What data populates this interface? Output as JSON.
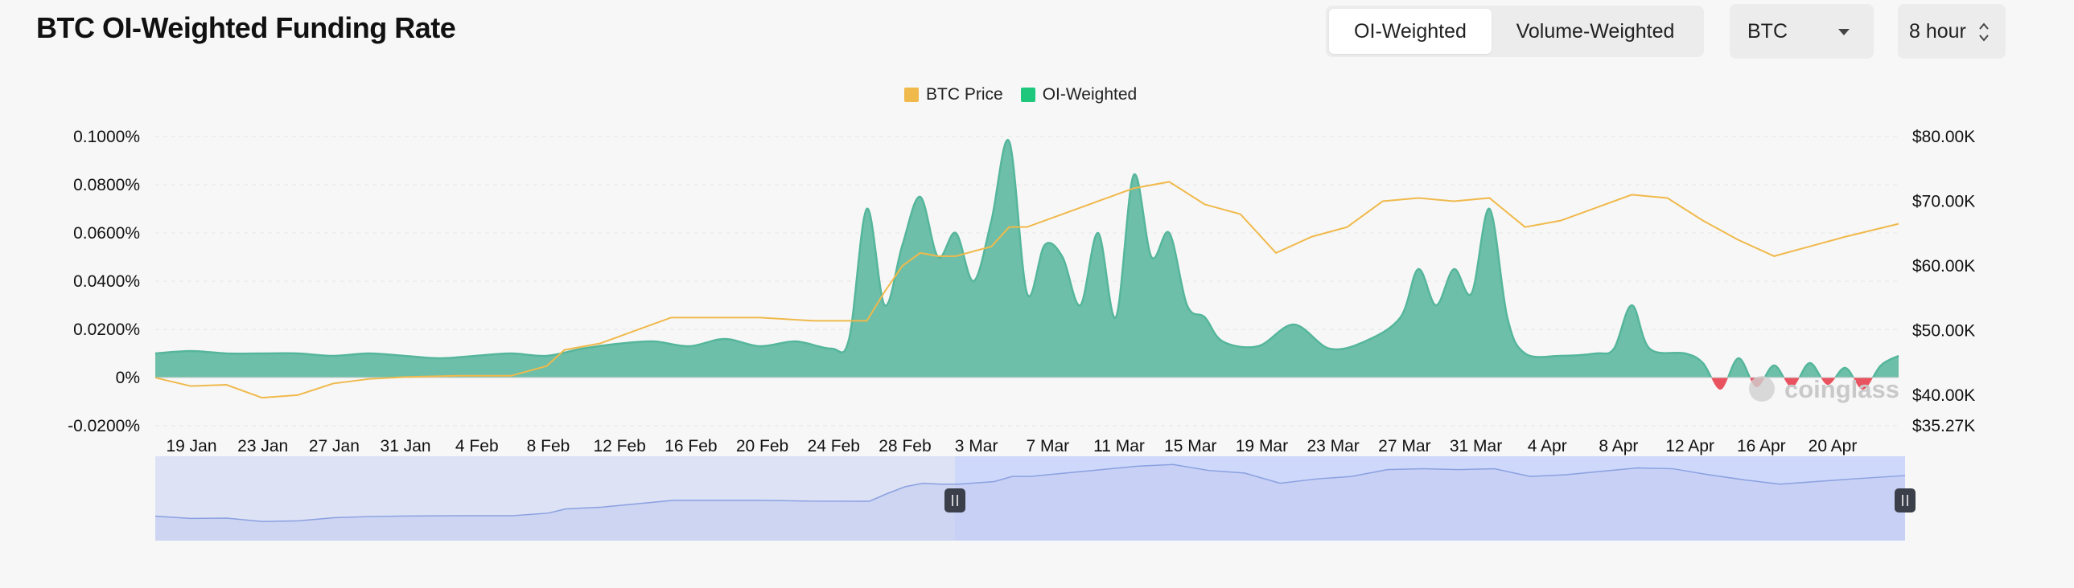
{
  "header": {
    "title": "BTC OI-Weighted Funding Rate",
    "tabs": [
      {
        "label": "OI-Weighted",
        "active": true
      },
      {
        "label": "Volume-Weighted",
        "active": false
      }
    ],
    "coin_select": {
      "value": "BTC",
      "icon": "chevron-down-icon"
    },
    "interval_select": {
      "value": "8 hour",
      "icon": "up-down-chevron-icon"
    }
  },
  "watermark": "coinglass",
  "colors": {
    "price_line": "#f0b94b",
    "funding_positive": "#55b69b",
    "funding_positive_fill": "#6dbfa9",
    "funding_negative": "#e8535f",
    "navigator_fill": "#dde2f5",
    "navigator_selected": "#ced8fa",
    "navigator_line": "#8aa0e0"
  },
  "chart_data": {
    "type": "area",
    "legend": [
      "BTC Price",
      "OI-Weighted"
    ],
    "legend_position": "top-center",
    "x_tick_labels": [
      "19 Jan",
      "23 Jan",
      "27 Jan",
      "31 Jan",
      "4 Feb",
      "8 Feb",
      "12 Feb",
      "16 Feb",
      "20 Feb",
      "24 Feb",
      "28 Feb",
      "3 Mar",
      "7 Mar",
      "11 Mar",
      "15 Mar",
      "19 Mar",
      "23 Mar",
      "27 Mar",
      "31 Mar",
      "4 Apr",
      "8 Apr",
      "12 Apr",
      "16 Apr",
      "20 Apr"
    ],
    "y_left": {
      "tick_labels": [
        "0.1000%",
        "0.0800%",
        "0.0600%",
        "0.0400%",
        "0.0200%",
        "0%",
        "-0.0200%"
      ],
      "range_percent": [
        -0.02,
        0.1
      ]
    },
    "y_right": {
      "tick_labels": [
        "$80.00K",
        "$70.00K",
        "$60.00K",
        "$50.00K",
        "$40.00K",
        "$35.27K"
      ],
      "range_usd": [
        35270,
        80000
      ]
    },
    "grid": "horizontal",
    "date_range": [
      "2024-01-17",
      "2024-04-24"
    ],
    "series": [
      {
        "name": "OI-Weighted",
        "unit": "%",
        "points": [
          [
            "2024-01-17",
            0.01
          ],
          [
            "2024-01-19",
            0.011
          ],
          [
            "2024-01-21",
            0.01
          ],
          [
            "2024-01-23",
            0.01
          ],
          [
            "2024-01-25",
            0.01
          ],
          [
            "2024-01-27",
            0.009
          ],
          [
            "2024-01-29",
            0.01
          ],
          [
            "2024-01-31",
            0.009
          ],
          [
            "2024-02-02",
            0.008
          ],
          [
            "2024-02-04",
            0.009
          ],
          [
            "2024-02-06",
            0.01
          ],
          [
            "2024-02-08",
            0.009
          ],
          [
            "2024-02-10",
            0.012
          ],
          [
            "2024-02-12",
            0.014
          ],
          [
            "2024-02-14",
            0.015
          ],
          [
            "2024-02-16",
            0.013
          ],
          [
            "2024-02-18",
            0.016
          ],
          [
            "2024-02-20",
            0.013
          ],
          [
            "2024-02-22",
            0.015
          ],
          [
            "2024-02-24",
            0.012
          ],
          [
            "2024-02-25",
            0.016
          ],
          [
            "2024-02-26",
            0.07
          ],
          [
            "2024-02-27",
            0.03
          ],
          [
            "2024-02-28",
            0.055
          ],
          [
            "2024-02-29",
            0.075
          ],
          [
            "2024-03-01",
            0.05
          ],
          [
            "2024-03-02",
            0.06
          ],
          [
            "2024-03-03",
            0.04
          ],
          [
            "2024-03-04",
            0.065
          ],
          [
            "2024-03-05",
            0.098
          ],
          [
            "2024-03-06",
            0.035
          ],
          [
            "2024-03-07",
            0.055
          ],
          [
            "2024-03-08",
            0.05
          ],
          [
            "2024-03-09",
            0.03
          ],
          [
            "2024-03-10",
            0.06
          ],
          [
            "2024-03-11",
            0.025
          ],
          [
            "2024-03-12",
            0.084
          ],
          [
            "2024-03-13",
            0.05
          ],
          [
            "2024-03-14",
            0.06
          ],
          [
            "2024-03-15",
            0.03
          ],
          [
            "2024-03-16",
            0.025
          ],
          [
            "2024-03-17",
            0.015
          ],
          [
            "2024-03-19",
            0.013
          ],
          [
            "2024-03-21",
            0.022
          ],
          [
            "2024-03-23",
            0.012
          ],
          [
            "2024-03-25",
            0.015
          ],
          [
            "2024-03-27",
            0.025
          ],
          [
            "2024-03-28",
            0.045
          ],
          [
            "2024-03-29",
            0.03
          ],
          [
            "2024-03-30",
            0.045
          ],
          [
            "2024-03-31",
            0.035
          ],
          [
            "2024-04-01",
            0.07
          ],
          [
            "2024-04-02",
            0.025
          ],
          [
            "2024-04-03",
            0.01
          ],
          [
            "2024-04-05",
            0.009
          ],
          [
            "2024-04-07",
            0.01
          ],
          [
            "2024-04-08",
            0.012
          ],
          [
            "2024-04-09",
            0.03
          ],
          [
            "2024-04-10",
            0.012
          ],
          [
            "2024-04-12",
            0.01
          ],
          [
            "2024-04-13",
            0.006
          ],
          [
            "2024-04-14",
            -0.005
          ],
          [
            "2024-04-15",
            0.008
          ],
          [
            "2024-04-16",
            -0.004
          ],
          [
            "2024-04-17",
            0.005
          ],
          [
            "2024-04-18",
            -0.004
          ],
          [
            "2024-04-19",
            0.006
          ],
          [
            "2024-04-20",
            -0.003
          ],
          [
            "2024-04-21",
            0.004
          ],
          [
            "2024-04-22",
            -0.005
          ],
          [
            "2024-04-23",
            0.005
          ],
          [
            "2024-04-24",
            0.009
          ]
        ]
      },
      {
        "name": "BTC Price",
        "unit": "USD",
        "points": [
          [
            "2024-01-17",
            42700
          ],
          [
            "2024-01-19",
            41400
          ],
          [
            "2024-01-21",
            41600
          ],
          [
            "2024-01-23",
            39600
          ],
          [
            "2024-01-25",
            40000
          ],
          [
            "2024-01-27",
            41800
          ],
          [
            "2024-01-29",
            42500
          ],
          [
            "2024-01-31",
            42800
          ],
          [
            "2024-02-03",
            43000
          ],
          [
            "2024-02-06",
            43000
          ],
          [
            "2024-02-08",
            44500
          ],
          [
            "2024-02-09",
            47000
          ],
          [
            "2024-02-11",
            48000
          ],
          [
            "2024-02-13",
            50000
          ],
          [
            "2024-02-15",
            52000
          ],
          [
            "2024-02-17",
            52000
          ],
          [
            "2024-02-20",
            52000
          ],
          [
            "2024-02-23",
            51500
          ],
          [
            "2024-02-26",
            51500
          ],
          [
            "2024-02-27",
            56000
          ],
          [
            "2024-02-28",
            60000
          ],
          [
            "2024-02-29",
            62000
          ],
          [
            "2024-03-01",
            61500
          ],
          [
            "2024-03-02",
            61500
          ],
          [
            "2024-03-04",
            63000
          ],
          [
            "2024-03-05",
            66000
          ],
          [
            "2024-03-06",
            66000
          ],
          [
            "2024-03-08",
            68000
          ],
          [
            "2024-03-10",
            70000
          ],
          [
            "2024-03-12",
            72000
          ],
          [
            "2024-03-14",
            73000
          ],
          [
            "2024-03-16",
            69500
          ],
          [
            "2024-03-18",
            68000
          ],
          [
            "2024-03-20",
            62000
          ],
          [
            "2024-03-22",
            64500
          ],
          [
            "2024-03-24",
            66000
          ],
          [
            "2024-03-26",
            70000
          ],
          [
            "2024-03-28",
            70500
          ],
          [
            "2024-03-30",
            70000
          ],
          [
            "2024-04-01",
            70500
          ],
          [
            "2024-04-03",
            66000
          ],
          [
            "2024-04-05",
            67000
          ],
          [
            "2024-04-07",
            69000
          ],
          [
            "2024-04-09",
            71000
          ],
          [
            "2024-04-11",
            70500
          ],
          [
            "2024-04-13",
            67000
          ],
          [
            "2024-04-15",
            64000
          ],
          [
            "2024-04-17",
            61500
          ],
          [
            "2024-04-19",
            63000
          ],
          [
            "2024-04-21",
            64500
          ],
          [
            "2024-04-24",
            66500
          ]
        ]
      }
    ]
  }
}
